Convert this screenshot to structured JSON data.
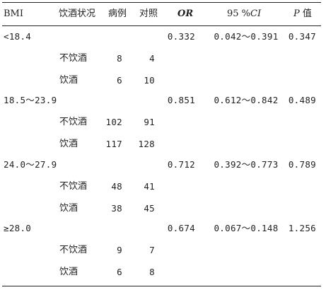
{
  "headers": {
    "bmi": "BMI",
    "drinking_status": "饮酒状况",
    "cases": "病例",
    "controls": "对照",
    "or": "OR",
    "ci_prefix": "95 %",
    "ci_label": "CI",
    "p_label": "P",
    "p_suffix": " 值"
  },
  "groups": [
    {
      "bmi": "<18.4",
      "or": "0.332",
      "ci": "0.042～0.391",
      "p": "0.347",
      "rows": [
        {
          "status": "不饮酒",
          "cases": "8",
          "controls": "4"
        },
        {
          "status": "饮酒",
          "cases": "6",
          "controls": "10"
        }
      ]
    },
    {
      "bmi": "18.5～23.9",
      "or": "0.851",
      "ci": "0.612～0.842",
      "p": "0.489",
      "rows": [
        {
          "status": "不饮酒",
          "cases": "102",
          "controls": "91"
        },
        {
          "status": "饮酒",
          "cases": "117",
          "controls": "128"
        }
      ]
    },
    {
      "bmi": "24.0～27.9",
      "or": "0.712",
      "ci": "0.392～0.773",
      "p": "0.789",
      "rows": [
        {
          "status": "不饮酒",
          "cases": "48",
          "controls": "41"
        },
        {
          "status": "饮酒",
          "cases": "38",
          "controls": "45"
        }
      ]
    },
    {
      "bmi": "≥28.0",
      "or": "0.674",
      "ci": "0.067～0.148",
      "p": "1.256",
      "rows": [
        {
          "status": "不饮酒",
          "cases": "9",
          "controls": "7"
        },
        {
          "status": "饮酒",
          "cases": "6",
          "controls": "8"
        }
      ]
    }
  ]
}
